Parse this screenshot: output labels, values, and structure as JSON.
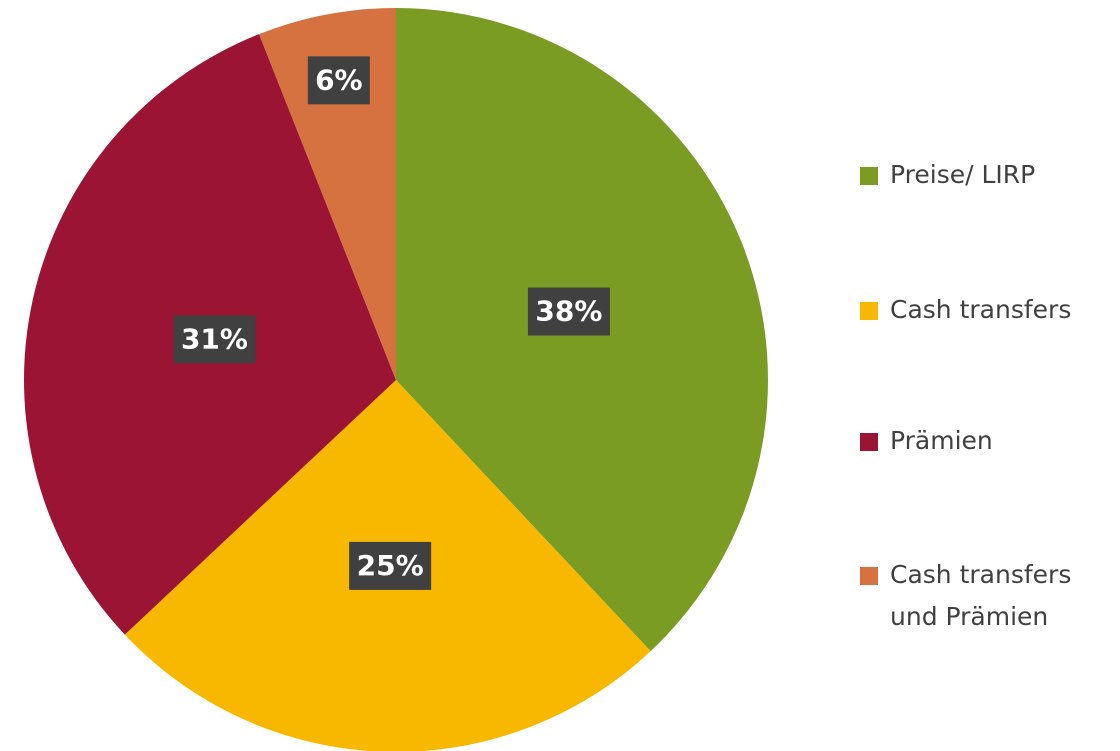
{
  "chart_data": {
    "type": "pie",
    "categories": [
      "Preise/ LIRP",
      "Cash transfers",
      "Prämien",
      "Cash transfers und Prämien"
    ],
    "values": [
      38,
      25,
      31,
      6
    ],
    "value_labels": [
      "38%",
      "25%",
      "31%",
      "6%"
    ],
    "colors": [
      "#7a9c22",
      "#f9b800",
      "#9b1434",
      "#d67240"
    ],
    "legend": "right"
  }
}
